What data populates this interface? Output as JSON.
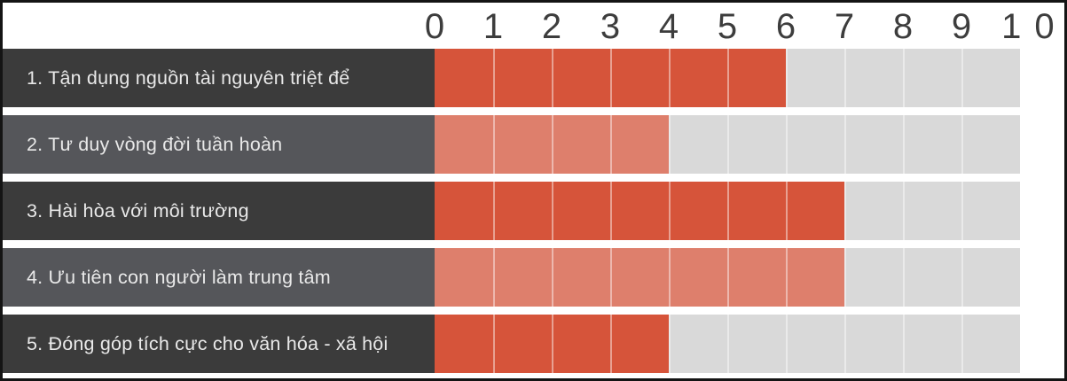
{
  "chart_data": {
    "type": "bar",
    "orientation": "horizontal",
    "title": "",
    "xlabel": "",
    "ylabel": "",
    "xlim": [
      0,
      10
    ],
    "x_ticks": [
      "0",
      "1",
      "2",
      "3",
      "4",
      "5",
      "6",
      "7",
      "8",
      "9",
      "10"
    ],
    "grid": true,
    "legend": false,
    "categories": [
      "1. Tận dụng nguồn tài nguyên triệt để",
      "2. Tư duy vòng đời tuần hoàn",
      "3. Hài hòa với môi trường",
      "4. Ưu tiên con người làm trung tâm",
      "5. Đóng góp tích cực cho văn hóa - xã hội"
    ],
    "values": [
      6,
      4,
      7,
      7,
      4
    ],
    "bars": [
      {
        "label": "1. Tận dụng nguồn tài nguyên triệt để",
        "value": 6,
        "bar_color": "#d6543a",
        "label_bg": "#3b3b3b"
      },
      {
        "label": "2. Tư duy vòng đời tuần hoàn",
        "value": 4,
        "bar_color": "#de7f6c",
        "label_bg": "#55565a"
      },
      {
        "label": "3. Hài hòa với môi trường",
        "value": 7,
        "bar_color": "#d6543a",
        "label_bg": "#3b3b3b"
      },
      {
        "label": "4. Ưu tiên con người làm trung tâm",
        "value": 7,
        "bar_color": "#de7f6c",
        "label_bg": "#55565a"
      },
      {
        "label": "5. Đóng góp tích cực cho văn hóa - xã hội",
        "value": 4,
        "bar_color": "#d6543a",
        "label_bg": "#3b3b3b"
      }
    ],
    "segments_per_track": 10,
    "colors": {
      "track": "#d9d9d9",
      "separator": "rgba(255,255,255,0.45)",
      "axis_text": "#3d3d3d",
      "label_text": "#e9e9e9",
      "border": "#141414",
      "background": "#ffffff"
    }
  }
}
